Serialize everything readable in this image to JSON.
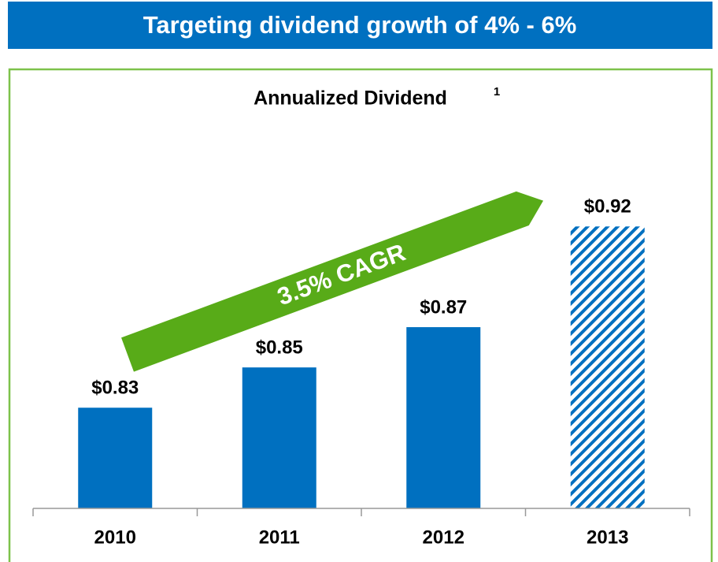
{
  "chart_data": {
    "type": "bar",
    "banner": "Targeting dividend growth of 4% - 6%",
    "title": "Annualized Dividend",
    "title_footnote": "1",
    "annotation": "3.5% CAGR",
    "categories": [
      "2010",
      "2011",
      "2012",
      "2013"
    ],
    "values": [
      0.83,
      0.85,
      0.87,
      0.92
    ],
    "value_labels": [
      "$0.83",
      "$0.85",
      "$0.87",
      "$0.92"
    ],
    "hatched": [
      false,
      false,
      false,
      true
    ],
    "color": "#0070c0",
    "ylim": [
      0.78,
      0.98
    ]
  }
}
